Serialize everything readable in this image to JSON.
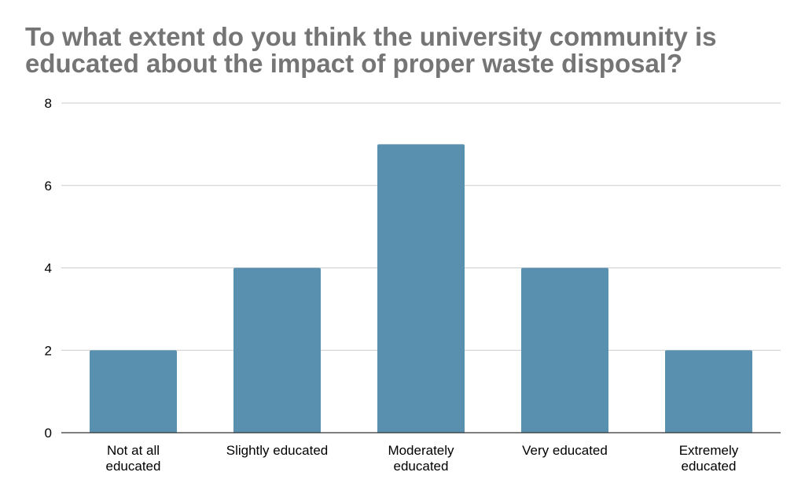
{
  "chart_data": {
    "type": "bar",
    "title": "To what extent do you think the university community is educated about the impact of proper waste disposal?",
    "xlabel": "",
    "ylabel": "",
    "categories": [
      "Not at all educated",
      "Slightly educated",
      "Moderately educated",
      "Very educated",
      "Extremely educated"
    ],
    "category_label_lines": [
      [
        "Not at all",
        "educated"
      ],
      [
        "Slightly educated"
      ],
      [
        "Moderately",
        "educated"
      ],
      [
        "Very educated"
      ],
      [
        "Extremely",
        "educated"
      ]
    ],
    "values": [
      2,
      4,
      7,
      4,
      2
    ],
    "ylim": [
      0,
      8
    ],
    "yticks": [
      0,
      2,
      4,
      6,
      8
    ],
    "grid": true,
    "legend": "none",
    "colors": {
      "bar": "#5990af",
      "title": "#757575",
      "grid": "#cccccc",
      "axis": "#333333"
    }
  }
}
